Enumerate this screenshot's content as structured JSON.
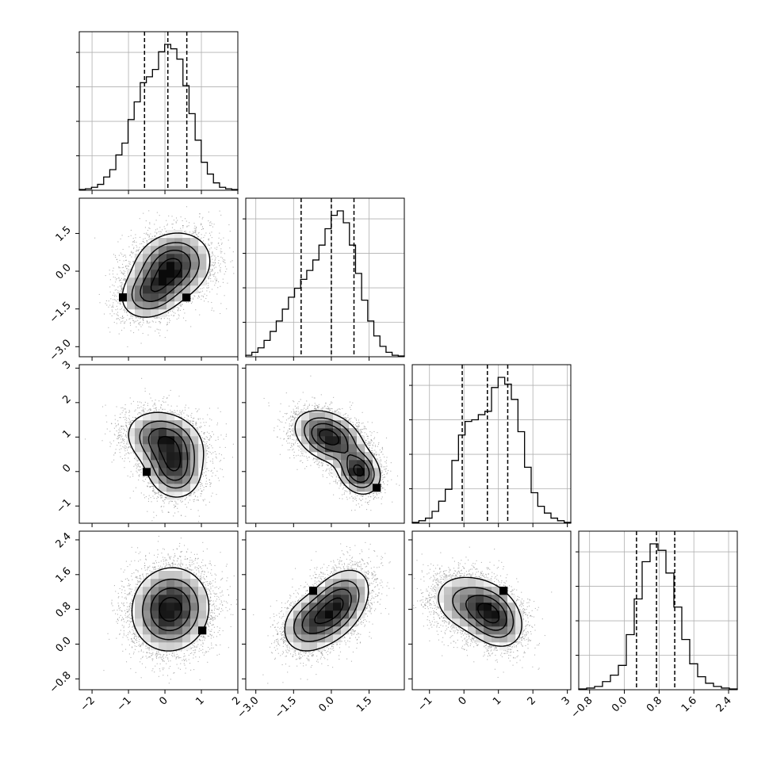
{
  "chart_data": {
    "type": "corner",
    "n_params": 4,
    "params": [
      {
        "index": 0,
        "quantiles": [
          -0.56,
          0.08,
          0.6
        ],
        "range": [
          -2.35,
          2.0
        ],
        "ticks": [
          -2,
          -1,
          0,
          1,
          2
        ],
        "tick_labels": [
          "−2",
          "−1",
          "0",
          "1",
          "2"
        ],
        "hist": [
          0.5,
          1,
          2,
          4,
          9,
          14,
          24,
          32,
          48,
          60,
          73,
          77,
          82,
          94,
          99,
          96,
          89,
          71,
          52,
          34,
          19,
          11,
          5,
          2,
          1,
          0.5
        ]
      },
      {
        "index": 1,
        "quantiles": [
          -1.2,
          0.0,
          0.9
        ],
        "range": [
          -3.4,
          2.9
        ],
        "ticks": [
          -3.0,
          -1.5,
          0.0,
          1.5
        ],
        "tick_labels": [
          "−3.0",
          "−1.5",
          "0.0",
          "1.5"
        ],
        "hist": [
          1,
          3,
          6,
          11,
          17,
          24,
          32,
          40,
          46,
          52,
          58,
          65,
          75,
          86,
          95,
          98,
          90,
          75,
          56,
          38,
          24,
          14,
          7,
          3,
          1,
          0.5
        ]
      },
      {
        "index": 2,
        "quantiles": [
          -0.05,
          0.68,
          1.27
        ],
        "range": [
          -1.5,
          3.1
        ],
        "ticks": [
          -1,
          0,
          1,
          2,
          3
        ],
        "tick_labels": [
          "−1",
          "0",
          "1",
          "2",
          "3"
        ],
        "hist": [
          0.5,
          1.5,
          3,
          7,
          13,
          20,
          37,
          52,
          60,
          61,
          64,
          66,
          80,
          86,
          82,
          73,
          54,
          33,
          18,
          10,
          6,
          3,
          1.5,
          0.5
        ]
      },
      {
        "index": 3,
        "quantiles": [
          0.28,
          0.74,
          1.16
        ],
        "range": [
          -1.05,
          2.6
        ],
        "ticks": [
          -0.8,
          0.0,
          0.8,
          1.6,
          2.4
        ],
        "tick_labels": [
          "−0.8",
          "0.0",
          "0.8",
          "1.6",
          "2.4"
        ],
        "hist": [
          0.5,
          1,
          2,
          5,
          9,
          15,
          34,
          56,
          79,
          90,
          86,
          72,
          51,
          31,
          16,
          8,
          4,
          2,
          1,
          0.5
        ]
      }
    ],
    "pairs": [
      {
        "x": 0,
        "y": 1,
        "modes": [
          {
            "mx": 0.2,
            "my": 0.2,
            "sx": 0.55,
            "sy": 0.7,
            "rho": 0.15,
            "w": 0.7
          },
          {
            "mx": -0.4,
            "my": -0.9,
            "sx": 0.45,
            "sy": 0.55,
            "rho": 0.2,
            "w": 0.3
          }
        ]
      },
      {
        "x": 0,
        "y": 2,
        "modes": [
          {
            "mx": 0.0,
            "my": 0.9,
            "sx": 0.55,
            "sy": 0.45,
            "rho": -0.2,
            "w": 0.6
          },
          {
            "mx": 0.25,
            "my": 0.05,
            "sx": 0.4,
            "sy": 0.45,
            "rho": -0.1,
            "w": 0.4
          }
        ]
      },
      {
        "x": 0,
        "y": 3,
        "modes": [
          {
            "mx": 0.15,
            "my": 0.8,
            "sx": 0.55,
            "sy": 0.5,
            "rho": 0.05,
            "w": 1.0
          }
        ]
      },
      {
        "x": 1,
        "y": 2,
        "modes": [
          {
            "mx": -0.1,
            "my": 1.0,
            "sx": 0.7,
            "sy": 0.4,
            "rho": -0.35,
            "w": 0.65
          },
          {
            "mx": 1.1,
            "my": 0.0,
            "sx": 0.45,
            "sy": 0.35,
            "rho": -0.2,
            "w": 0.35
          }
        ]
      },
      {
        "x": 1,
        "y": 3,
        "modes": [
          {
            "mx": 0.15,
            "my": 0.85,
            "sx": 0.7,
            "sy": 0.45,
            "rho": 0.45,
            "w": 0.75
          },
          {
            "mx": -1.0,
            "my": 0.45,
            "sx": 0.55,
            "sy": 0.35,
            "rho": 0.2,
            "w": 0.25
          }
        ]
      },
      {
        "x": 2,
        "y": 3,
        "modes": [
          {
            "mx": 0.85,
            "my": 0.65,
            "sx": 0.45,
            "sy": 0.38,
            "rho": -0.3,
            "w": 0.6
          },
          {
            "mx": 0.05,
            "my": 0.95,
            "sx": 0.55,
            "sy": 0.38,
            "rho": -0.2,
            "w": 0.4
          }
        ]
      }
    ],
    "grid": true,
    "colors": {
      "line": "#000000",
      "grid": "#b0b0b0",
      "points": "#808080"
    }
  }
}
